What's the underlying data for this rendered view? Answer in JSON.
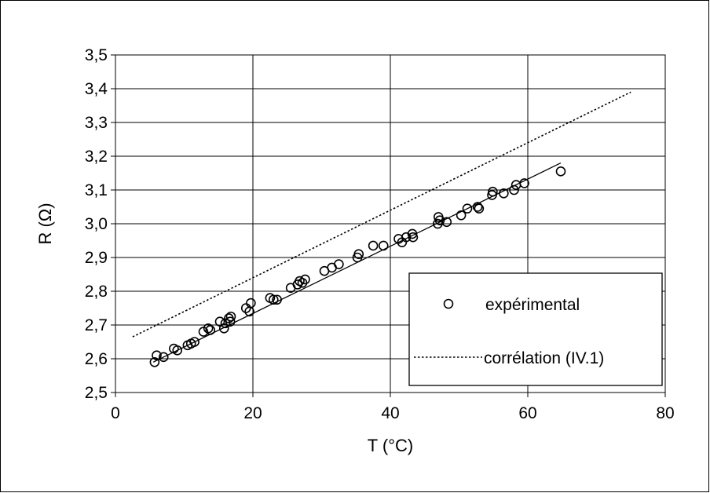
{
  "chart_data": {
    "type": "scatter",
    "title": "",
    "xlabel": "T (°C)",
    "ylabel": "R (Ω)",
    "xlim": [
      0,
      80
    ],
    "ylim": [
      2.5,
      3.5
    ],
    "x_ticks": [
      0,
      20,
      40,
      60,
      80
    ],
    "y_ticks": [
      2.5,
      2.6,
      2.7,
      2.8,
      2.9,
      3.0,
      3.1,
      3.2,
      3.3,
      3.4,
      3.5
    ],
    "x_tick_labels": [
      "0",
      "20",
      "40",
      "60",
      "80"
    ],
    "y_tick_labels": [
      "2,5",
      "2,6",
      "2,7",
      "2,8",
      "2,9",
      "3,0",
      "3,1",
      "3,2",
      "3,3",
      "3,4",
      "3,5"
    ],
    "grid": "horizontal and vertical",
    "legend_position": "lower-right",
    "series": [
      {
        "name": "expérimental",
        "kind": "markers",
        "marker": "open-circle",
        "color": "#000000",
        "points": [
          [
            5.7,
            2.59
          ],
          [
            6.0,
            2.61
          ],
          [
            7.0,
            2.605
          ],
          [
            8.5,
            2.63
          ],
          [
            9.0,
            2.625
          ],
          [
            10.5,
            2.64
          ],
          [
            11.0,
            2.645
          ],
          [
            11.5,
            2.65
          ],
          [
            12.8,
            2.68
          ],
          [
            13.8,
            2.685
          ],
          [
            13.5,
            2.69
          ],
          [
            15.2,
            2.71
          ],
          [
            15.8,
            2.69
          ],
          [
            16.0,
            2.705
          ],
          [
            16.5,
            2.72
          ],
          [
            16.7,
            2.71
          ],
          [
            16.8,
            2.725
          ],
          [
            19.0,
            2.75
          ],
          [
            19.5,
            2.74
          ],
          [
            19.7,
            2.765
          ],
          [
            22.5,
            2.78
          ],
          [
            23.0,
            2.775
          ],
          [
            23.5,
            2.775
          ],
          [
            25.5,
            2.81
          ],
          [
            26.5,
            2.82
          ],
          [
            26.8,
            2.83
          ],
          [
            27.2,
            2.825
          ],
          [
            27.6,
            2.835
          ],
          [
            30.4,
            2.86
          ],
          [
            31.5,
            2.87
          ],
          [
            32.5,
            2.88
          ],
          [
            35.2,
            2.9
          ],
          [
            35.4,
            2.91
          ],
          [
            37.5,
            2.935
          ],
          [
            39.0,
            2.935
          ],
          [
            41.2,
            2.955
          ],
          [
            41.7,
            2.945
          ],
          [
            42.3,
            2.96
          ],
          [
            43.2,
            2.97
          ],
          [
            43.3,
            2.96
          ],
          [
            46.9,
            3.0
          ],
          [
            47.0,
            3.02
          ],
          [
            47.2,
            3.01
          ],
          [
            48.2,
            3.005
          ],
          [
            50.3,
            3.025
          ],
          [
            51.2,
            3.045
          ],
          [
            52.7,
            3.05
          ],
          [
            52.9,
            3.045
          ],
          [
            54.8,
            3.085
          ],
          [
            54.9,
            3.095
          ],
          [
            56.5,
            3.09
          ],
          [
            58.0,
            3.1
          ],
          [
            58.3,
            3.115
          ],
          [
            59.5,
            3.12
          ],
          [
            64.8,
            3.155
          ]
        ]
      },
      {
        "name": "",
        "kind": "line",
        "style": "solid",
        "color": "#000000",
        "points": [
          [
            5.5,
            2.59
          ],
          [
            64.8,
            3.18
          ]
        ]
      },
      {
        "name": "corrélation (IV.1)",
        "kind": "line",
        "style": "dotted",
        "color": "#000000",
        "points": [
          [
            2.5,
            2.665
          ],
          [
            75.0,
            3.39
          ]
        ]
      }
    ]
  }
}
